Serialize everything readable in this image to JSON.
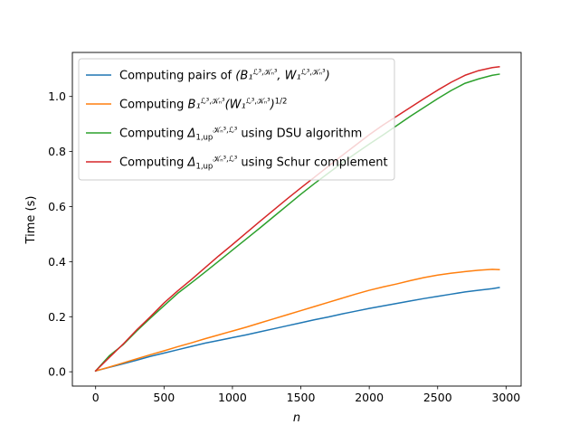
{
  "chart_data": {
    "type": "line",
    "xlabel": "n",
    "ylabel": "Time (s)",
    "xlim": [
      -170,
      3110
    ],
    "ylim": [
      -0.052,
      1.16
    ],
    "xticks": [
      0,
      500,
      1000,
      1500,
      2000,
      2500,
      3000
    ],
    "yticks": [
      0.0,
      0.2,
      0.4,
      0.6,
      0.8,
      1.0
    ],
    "xtick_labels": [
      "0",
      "500",
      "1000",
      "1500",
      "2000",
      "2500",
      "3000"
    ],
    "ytick_labels": [
      "0.0",
      "0.2",
      "0.4",
      "0.6",
      "0.8",
      "1.0"
    ],
    "grid": false,
    "legend_position": "top-left",
    "x": [
      0,
      100,
      200,
      300,
      400,
      500,
      600,
      700,
      800,
      900,
      1000,
      1100,
      1200,
      1300,
      1400,
      1500,
      1600,
      1700,
      1800,
      1900,
      2000,
      2100,
      2200,
      2300,
      2400,
      2500,
      2600,
      2700,
      2800,
      2900,
      2950
    ],
    "series": [
      {
        "legend_prefix": "Computing pairs of ",
        "legend_math": "(B₁^{ℒ³,𝒦ₙ³}, W₁^{ℒ³,𝒦ₙ³})",
        "color": "#1f77b4",
        "values": [
          0.003,
          0.016,
          0.029,
          0.042,
          0.056,
          0.068,
          0.08,
          0.092,
          0.104,
          0.114,
          0.124,
          0.134,
          0.145,
          0.156,
          0.167,
          0.178,
          0.189,
          0.199,
          0.21,
          0.22,
          0.23,
          0.239,
          0.248,
          0.257,
          0.266,
          0.274,
          0.282,
          0.29,
          0.296,
          0.302,
          0.306
        ]
      },
      {
        "legend_prefix": "Computing ",
        "legend_math": "B₁^{ℒ³,𝒦ₙ³}(W₁^{ℒ³,𝒦ₙ³})^{1/2}",
        "color": "#ff7f0e",
        "values": [
          0.003,
          0.017,
          0.032,
          0.047,
          0.062,
          0.076,
          0.091,
          0.105,
          0.12,
          0.134,
          0.148,
          0.162,
          0.177,
          0.192,
          0.207,
          0.222,
          0.237,
          0.252,
          0.267,
          0.282,
          0.296,
          0.308,
          0.319,
          0.331,
          0.342,
          0.351,
          0.358,
          0.364,
          0.369,
          0.372,
          0.371
        ]
      },
      {
        "legend_prefix": "Computing ",
        "legend_math": "Δ_{1,up}^{𝒦ₙ³,ℒ³}",
        "legend_suffix": " using DSU algorithm",
        "color": "#2ca02c",
        "values": [
          0.003,
          0.058,
          0.098,
          0.148,
          0.195,
          0.24,
          0.285,
          0.323,
          0.362,
          0.402,
          0.442,
          0.482,
          0.522,
          0.563,
          0.604,
          0.645,
          0.684,
          0.721,
          0.758,
          0.793,
          0.827,
          0.86,
          0.894,
          0.928,
          0.96,
          0.992,
          1.022,
          1.048,
          1.064,
          1.077,
          1.081
        ]
      },
      {
        "legend_prefix": "Computing ",
        "legend_math": "Δ_{1,up}^{𝒦ₙ³,ℒ³}",
        "legend_suffix": " using Schur complement",
        "color": "#d62728",
        "values": [
          0.003,
          0.052,
          0.1,
          0.152,
          0.2,
          0.25,
          0.294,
          0.335,
          0.378,
          0.421,
          0.462,
          0.504,
          0.546,
          0.587,
          0.628,
          0.668,
          0.707,
          0.746,
          0.785,
          0.823,
          0.861,
          0.896,
          0.928,
          0.96,
          0.992,
          1.023,
          1.052,
          1.077,
          1.094,
          1.105,
          1.108
        ]
      }
    ]
  }
}
